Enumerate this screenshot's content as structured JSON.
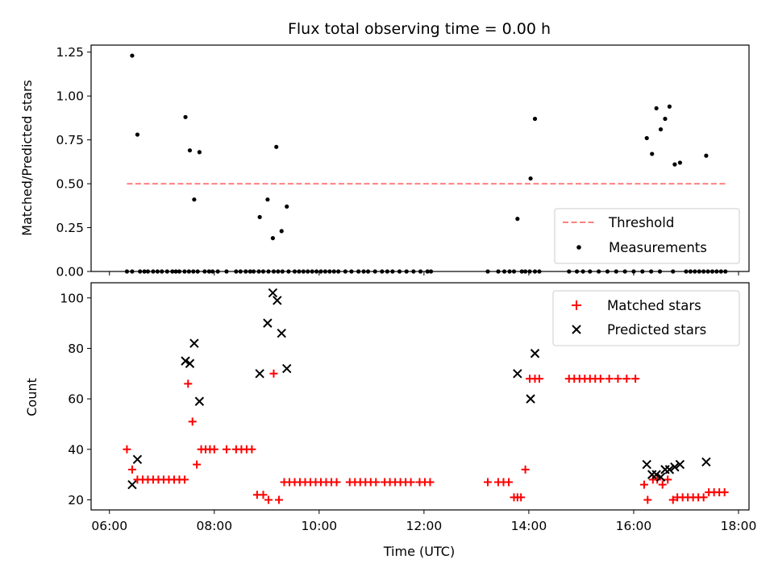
{
  "chart_data": [
    {
      "type": "scatter",
      "title": "Flux total observing time = 0.00 h",
      "xlabel": "",
      "ylabel": "Matched/Predicted stars",
      "xlim": [
        "06:00",
        "18:00"
      ],
      "ylim": [
        0,
        1.29
      ],
      "yticks": [
        0.0,
        0.25,
        0.5,
        0.75,
        1.0,
        1.25
      ],
      "ytick_labels": [
        "0.00",
        "0.25",
        "0.50",
        "0.75",
        "1.00",
        "1.25"
      ],
      "legend": [
        "Threshold",
        "Measurements"
      ],
      "legend_position": "lower right",
      "threshold": {
        "name": "Threshold",
        "value": 0.5,
        "x_start": "06:20",
        "x_end": "17:45",
        "color": "#ff7f7f",
        "style": "dashed"
      },
      "series": [
        {
          "name": "Measurements",
          "color": "#000000",
          "marker": "dot",
          "x": [
            "06:20",
            "06:26",
            "06:35",
            "06:40",
            "06:44",
            "06:50",
            "06:55",
            "07:00",
            "07:06",
            "07:12",
            "07:16",
            "07:20",
            "07:26",
            "07:31",
            "07:36",
            "07:41",
            "07:49",
            "07:54",
            "07:58",
            "08:04",
            "08:14",
            "08:25",
            "08:30",
            "08:36",
            "08:41",
            "08:45",
            "08:51",
            "08:56",
            "09:02",
            "09:08",
            "09:13",
            "09:18",
            "09:25",
            "09:32",
            "09:37",
            "09:42",
            "09:47",
            "09:52",
            "09:57",
            "10:02",
            "10:07",
            "10:12",
            "10:17",
            "10:22",
            "10:30",
            "10:37",
            "10:45",
            "10:51",
            "10:56",
            "11:04",
            "11:12",
            "11:18",
            "11:24",
            "11:32",
            "11:40",
            "11:48",
            "11:56",
            "12:04",
            "12:08",
            "13:13",
            "13:25",
            "13:32",
            "13:38",
            "13:43",
            "13:52",
            "13:56",
            "14:01",
            "14:07",
            "14:12",
            "14:46",
            "14:55",
            "15:02",
            "15:10",
            "15:20",
            "15:30",
            "15:40",
            "15:50",
            "16:00",
            "16:10",
            "16:20",
            "16:30",
            "16:45",
            "17:00",
            "17:05",
            "17:10",
            "17:15",
            "17:20",
            "17:25",
            "17:30",
            "17:35",
            "17:40",
            "17:45",
            "06:26",
            "06:32",
            "07:27",
            "07:32",
            "07:37",
            "07:43",
            "08:52",
            "09:01",
            "09:07",
            "09:11",
            "09:17",
            "09:23",
            "13:47",
            "14:02",
            "14:07",
            "16:15",
            "16:21",
            "16:26",
            "16:31",
            "16:36",
            "16:41",
            "16:47",
            "16:53",
            "17:23"
          ],
          "y": [
            0,
            0,
            0,
            0,
            0,
            0,
            0,
            0,
            0,
            0,
            0,
            0,
            0,
            0,
            0,
            0,
            0,
            0,
            0,
            0,
            0,
            0,
            0,
            0,
            0,
            0,
            0,
            0,
            0,
            0,
            0,
            0,
            0,
            0,
            0,
            0,
            0,
            0,
            0,
            0,
            0,
            0,
            0,
            0,
            0,
            0,
            0,
            0,
            0,
            0,
            0,
            0,
            0,
            0,
            0,
            0,
            0,
            0,
            0,
            0,
            0,
            0,
            0,
            0,
            0,
            0,
            0,
            0,
            0,
            0,
            0,
            0,
            0,
            0,
            0,
            0,
            0,
            0,
            0,
            0,
            0,
            0,
            0,
            0,
            0,
            0,
            0,
            0,
            0,
            0,
            0,
            0,
            1.23,
            0.78,
            0.88,
            0.69,
            0.41,
            0.68,
            0.31,
            0.41,
            0.19,
            0.71,
            0.23,
            0.37,
            0.3,
            0.53,
            0.87,
            0.76,
            0.67,
            0.93,
            0.81,
            0.87,
            0.94,
            0.61,
            0.62,
            0.66
          ]
        }
      ]
    },
    {
      "type": "scatter",
      "title": "",
      "xlabel": "Time (UTC)",
      "ylabel": "Count",
      "xlim": [
        "06:00",
        "18:00"
      ],
      "ylim": [
        16,
        106
      ],
      "xticks": [
        "06:00",
        "08:00",
        "10:00",
        "12:00",
        "14:00",
        "16:00",
        "18:00"
      ],
      "yticks": [
        20,
        40,
        60,
        80,
        100
      ],
      "ytick_labels": [
        "20",
        "40",
        "60",
        "80",
        "100"
      ],
      "legend": [
        "Matched stars",
        "Predicted stars"
      ],
      "legend_position": "upper right",
      "series": [
        {
          "name": "Matched stars",
          "color": "#ff0000",
          "marker": "plus",
          "x": [
            "06:20",
            "06:26",
            "06:32",
            "06:38",
            "06:44",
            "06:50",
            "06:56",
            "07:02",
            "07:08",
            "07:14",
            "07:20",
            "07:26",
            "07:30",
            "07:35",
            "07:40",
            "07:45",
            "07:50",
            "07:55",
            "08:00",
            "08:14",
            "08:25",
            "08:31",
            "08:37",
            "08:43",
            "08:49",
            "08:56",
            "09:02",
            "09:08",
            "09:14",
            "09:20",
            "09:26",
            "09:32",
            "09:38",
            "09:44",
            "09:50",
            "09:56",
            "10:02",
            "10:08",
            "10:14",
            "10:20",
            "10:35",
            "10:41",
            "10:47",
            "10:53",
            "10:59",
            "11:05",
            "11:15",
            "11:21",
            "11:27",
            "11:33",
            "11:39",
            "11:45",
            "11:55",
            "12:01",
            "12:07",
            "13:13",
            "13:25",
            "13:31",
            "13:37",
            "13:43",
            "13:47",
            "13:51",
            "13:56",
            "14:01",
            "14:07",
            "14:12",
            "14:46",
            "14:52",
            "14:58",
            "15:04",
            "15:10",
            "15:16",
            "15:22",
            "15:32",
            "15:42",
            "15:52",
            "16:02",
            "16:12",
            "16:16",
            "16:22",
            "16:27",
            "16:33",
            "16:39",
            "16:45",
            "16:50",
            "16:56",
            "17:02",
            "17:08",
            "17:14",
            "17:20",
            "17:26",
            "17:32",
            "17:38",
            "17:44"
          ],
          "y": [
            40,
            32,
            28,
            28,
            28,
            28,
            28,
            28,
            28,
            28,
            28,
            28,
            66,
            51,
            34,
            40,
            40,
            40,
            40,
            40,
            40,
            40,
            40,
            40,
            22,
            22,
            20,
            70,
            20,
            27,
            27,
            27,
            27,
            27,
            27,
            27,
            27,
            27,
            27,
            27,
            27,
            27,
            27,
            27,
            27,
            27,
            27,
            27,
            27,
            27,
            27,
            27,
            27,
            27,
            27,
            27,
            27,
            27,
            27,
            21,
            21,
            21,
            32,
            68,
            68,
            68,
            68,
            68,
            68,
            68,
            68,
            68,
            68,
            68,
            68,
            68,
            68,
            26,
            20,
            28,
            28,
            26,
            28,
            20,
            21,
            21,
            21,
            21,
            21,
            21,
            23,
            23,
            23,
            23
          ]
        },
        {
          "name": "Predicted stars",
          "color": "#000000",
          "marker": "x",
          "x": [
            "06:26",
            "06:32",
            "07:27",
            "07:32",
            "07:37",
            "07:43",
            "08:52",
            "09:01",
            "09:07",
            "09:12",
            "09:17",
            "09:23",
            "13:47",
            "14:02",
            "14:07",
            "16:15",
            "16:21",
            "16:26",
            "16:31",
            "16:36",
            "16:41",
            "16:47",
            "16:53",
            "17:23"
          ],
          "y": [
            26,
            36,
            75,
            74,
            82,
            59,
            70,
            90,
            102,
            99,
            86,
            72,
            70,
            60,
            78,
            34,
            30,
            30,
            29,
            32,
            32,
            33,
            34,
            35
          ]
        }
      ]
    }
  ]
}
